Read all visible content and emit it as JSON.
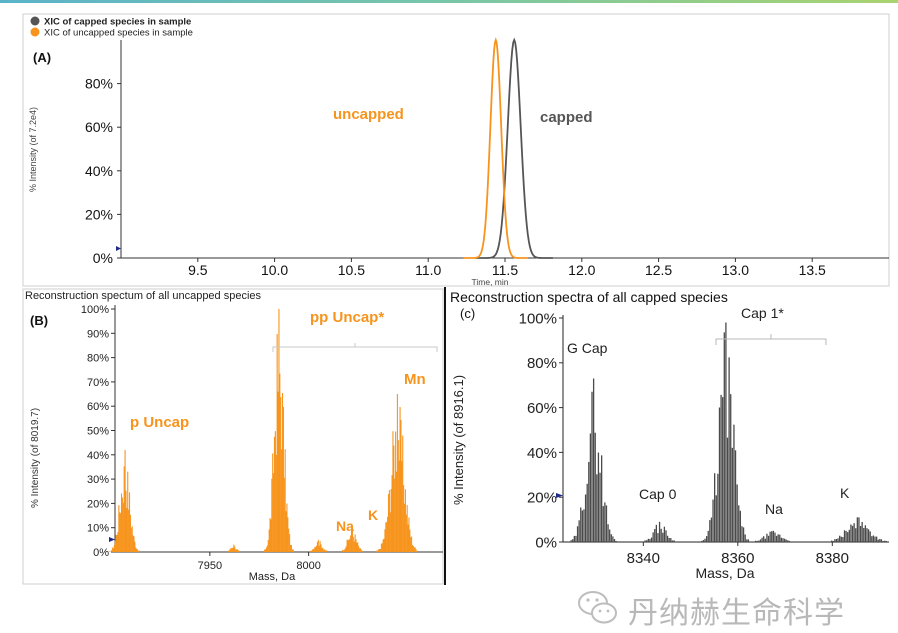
{
  "panelA": {
    "label": "(A)",
    "legend": [
      {
        "name": "XIC of capped species in sample",
        "color": "#555555"
      },
      {
        "name": "XIC of uncapped species in sample",
        "color": "#f7941d"
      }
    ],
    "ylabel": "% Intensity (of 7.2e4)",
    "xlabel": "Time, min",
    "annotations": {
      "uncapped": "uncapped",
      "capped": "capped"
    },
    "chart_data": {
      "type": "line",
      "xlim": [
        9.0,
        14.0
      ],
      "ylim": [
        0,
        100
      ],
      "x_ticks": [
        "9.5",
        "10.0",
        "10.5",
        "11.0",
        "11.5",
        "12.0",
        "12.5",
        "13.0",
        "13.5"
      ],
      "y_ticks": [
        "0%",
        "20%",
        "40%",
        "60%",
        "80%"
      ],
      "series": [
        {
          "name": "XIC of capped species in sample",
          "color": "#555555",
          "peak_x": 11.56,
          "peak_y": 100,
          "sigma": 0.042
        },
        {
          "name": "XIC of uncapped species in sample",
          "color": "#f7941d",
          "peak_x": 11.44,
          "peak_y": 100,
          "sigma": 0.035
        }
      ]
    }
  },
  "panelB": {
    "title": "Reconstruction spectum of all uncapped species",
    "label": "(B)",
    "ylabel": "% Intensity (of 8019.7)",
    "xlabel": "Mass, Da",
    "annotations": {
      "p_uncap": "p Uncap",
      "pp_uncap": "pp Uncap*",
      "na": "Na",
      "k": "K",
      "mn": "Mn"
    },
    "chart_data": {
      "type": "bar",
      "color": "#f7941d",
      "xlim": [
        7902,
        8068
      ],
      "ylim": [
        0,
        100
      ],
      "x_ticks": [
        "7950",
        "8000"
      ],
      "y_ticks": [
        "0%",
        "10%",
        "20%",
        "30%",
        "40%",
        "50%",
        "60%",
        "70%",
        "80%",
        "90%",
        "100%"
      ],
      "peak_groups": [
        {
          "center": 7907,
          "height": 42,
          "width": 2.5
        },
        {
          "center": 7962,
          "height": 3,
          "width": 1.5
        },
        {
          "center": 7985,
          "height": 100,
          "width": 2.4
        },
        {
          "center": 8005,
          "height": 5,
          "width": 2.0
        },
        {
          "center": 8022,
          "height": 10,
          "width": 2.2
        },
        {
          "center": 8045,
          "height": 65,
          "width": 3.4
        }
      ]
    }
  },
  "panelC": {
    "title": "Reconstruction spectra of all capped species",
    "label": "(c)",
    "ylabel": "% Intensity (of 8916.1)",
    "xlabel": "Mass, Da",
    "annotations": {
      "g_cap": "G Cap",
      "cap0": "Cap 0",
      "cap1": "Cap 1*",
      "na": "Na",
      "k": "K"
    },
    "chart_data": {
      "type": "bar",
      "color": "#4a4a4a",
      "xlim": [
        8323,
        8392
      ],
      "ylim": [
        0,
        100
      ],
      "x_ticks": [
        "8340",
        "8360",
        "8380"
      ],
      "y_ticks": [
        "0%",
        "20%",
        "40%",
        "60%",
        "80%",
        "100%"
      ],
      "peak_groups": [
        {
          "center": 8329.5,
          "height": 73,
          "width": 1.6
        },
        {
          "center": 8343.5,
          "height": 9,
          "width": 1.4
        },
        {
          "center": 8357.5,
          "height": 98,
          "width": 1.6
        },
        {
          "center": 8367.5,
          "height": 5,
          "width": 1.8
        },
        {
          "center": 8385.5,
          "height": 11,
          "width": 2.4
        }
      ]
    }
  },
  "watermark": {
    "text": "丹纳赫生命科学"
  }
}
